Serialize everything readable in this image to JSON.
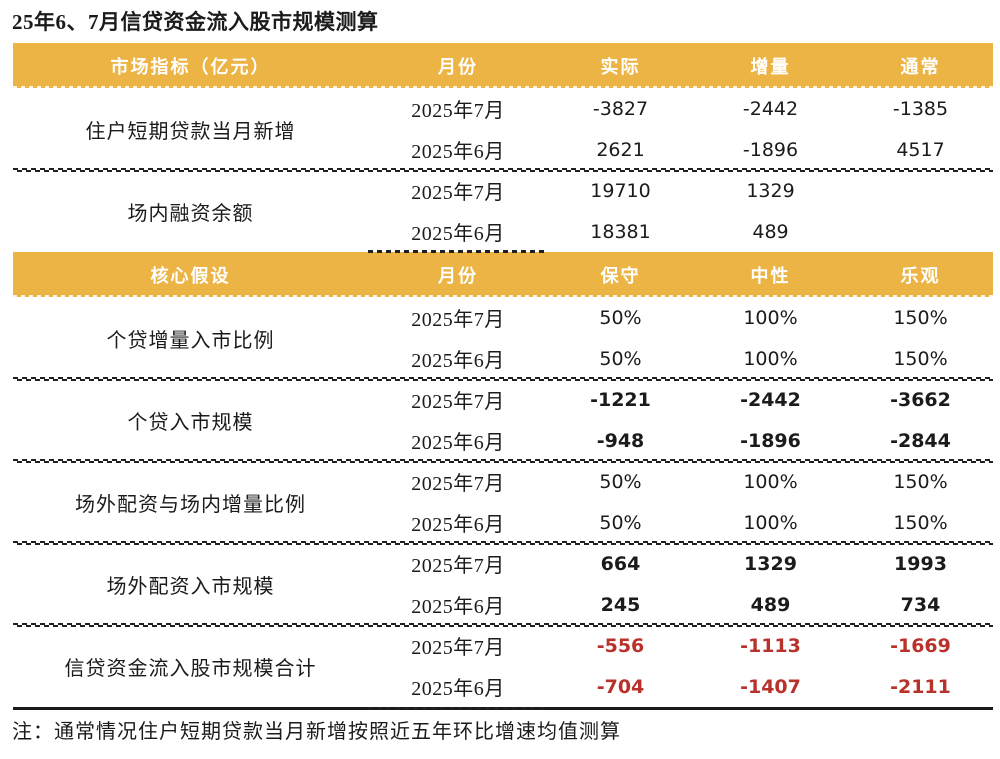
{
  "title": "25年6、7月信贷资金流入股市规模测算",
  "note": "注：通常情况住户短期贷款当月新增按照近五年环比增速均值测算",
  "colors": {
    "header_background": "#EBB444",
    "header_text": "#FFFFFF",
    "total_row_red": "#B9312B",
    "body_text": "#1B1B1B"
  },
  "market_table": {
    "headers": [
      "市场指标（亿元）",
      "月份",
      "实际",
      "增量",
      "通常"
    ],
    "sections": [
      {
        "label": "住户短期贷款当月新增",
        "rows": [
          {
            "month": "2025年7月",
            "values": [
              "-3827",
              "-2442",
              "-1385"
            ]
          },
          {
            "month": "2025年6月",
            "values": [
              "2621",
              "-1896",
              "4517"
            ]
          }
        ]
      },
      {
        "label": "场内融资余额",
        "rows": [
          {
            "month": "2025年7月",
            "values": [
              "19710",
              "1329",
              ""
            ]
          },
          {
            "month": "2025年6月",
            "values": [
              "18381",
              "489",
              ""
            ]
          }
        ]
      }
    ]
  },
  "assumption_table": {
    "headers": [
      "核心假设",
      "月份",
      "保守",
      "中性",
      "乐观"
    ],
    "sections": [
      {
        "label": "个贷增量入市比例",
        "emphasis": "normal",
        "rows": [
          {
            "month": "2025年7月",
            "values": [
              "50%",
              "100%",
              "150%"
            ]
          },
          {
            "month": "2025年6月",
            "values": [
              "50%",
              "100%",
              "150%"
            ]
          }
        ]
      },
      {
        "label": "个贷入市规模",
        "emphasis": "bold",
        "rows": [
          {
            "month": "2025年7月",
            "values": [
              "-1221",
              "-2442",
              "-3662"
            ]
          },
          {
            "month": "2025年6月",
            "values": [
              "-948",
              "-1896",
              "-2844"
            ]
          }
        ]
      },
      {
        "label": "场外配资与场内增量比例",
        "emphasis": "normal",
        "rows": [
          {
            "month": "2025年7月",
            "values": [
              "50%",
              "100%",
              "150%"
            ]
          },
          {
            "month": "2025年6月",
            "values": [
              "50%",
              "100%",
              "150%"
            ]
          }
        ]
      },
      {
        "label": "场外配资入市规模",
        "emphasis": "bold",
        "rows": [
          {
            "month": "2025年7月",
            "values": [
              "664",
              "1329",
              "1993"
            ]
          },
          {
            "month": "2025年6月",
            "values": [
              "245",
              "489",
              "734"
            ]
          }
        ]
      },
      {
        "label": "信贷资金流入股市规模合计",
        "emphasis": "bold-red",
        "rows": [
          {
            "month": "2025年7月",
            "values": [
              "-556",
              "-1113",
              "-1669"
            ]
          },
          {
            "month": "2025年6月",
            "values": [
              "-704",
              "-1407",
              "-2111"
            ]
          }
        ]
      }
    ]
  }
}
